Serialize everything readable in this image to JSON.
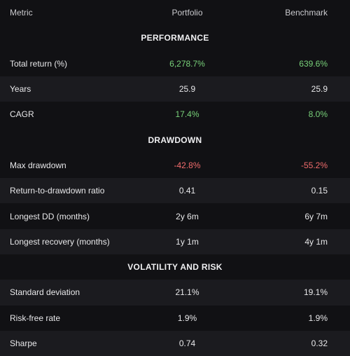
{
  "columns": {
    "metric": "Metric",
    "portfolio": "Portfolio",
    "benchmark": "Benchmark"
  },
  "colors": {
    "positive": "#79d27a",
    "negative": "#f16c6c"
  },
  "sections": [
    {
      "title": "PERFORMANCE",
      "rows": [
        {
          "metric": "Total return (%)",
          "portfolio": "6,278.7%",
          "benchmark": "639.6%",
          "tone": "pos"
        },
        {
          "metric": "Years",
          "portfolio": "25.9",
          "benchmark": "25.9",
          "tone": ""
        },
        {
          "metric": "CAGR",
          "portfolio": "17.4%",
          "benchmark": "8.0%",
          "tone": "pos"
        }
      ]
    },
    {
      "title": "DRAWDOWN",
      "rows": [
        {
          "metric": "Max drawdown",
          "portfolio": "-42.8%",
          "benchmark": "-55.2%",
          "tone": "neg"
        },
        {
          "metric": "Return-to-drawdown ratio",
          "portfolio": "0.41",
          "benchmark": "0.15",
          "tone": ""
        },
        {
          "metric": "Longest DD (months)",
          "portfolio": "2y 6m",
          "benchmark": "6y 7m",
          "tone": ""
        },
        {
          "metric": "Longest recovery (months)",
          "portfolio": "1y 1m",
          "benchmark": "4y 1m",
          "tone": ""
        }
      ]
    },
    {
      "title": "VOLATILITY AND RISK",
      "rows": [
        {
          "metric": "Standard deviation",
          "portfolio": "21.1%",
          "benchmark": "19.1%",
          "tone": ""
        },
        {
          "metric": "Risk-free rate",
          "portfolio": "1.9%",
          "benchmark": "1.9%",
          "tone": ""
        },
        {
          "metric": "Sharpe",
          "portfolio": "0.74",
          "benchmark": "0.32",
          "tone": ""
        }
      ]
    }
  ]
}
